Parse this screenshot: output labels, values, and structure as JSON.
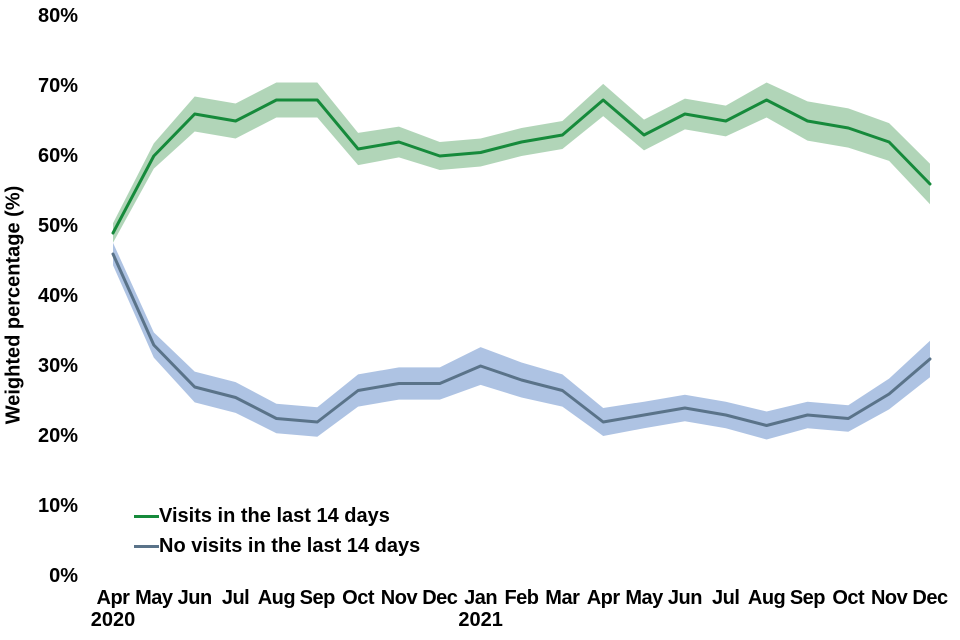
{
  "figure": {
    "background": "#ffffff",
    "text_color": "#000000"
  },
  "chart_data": {
    "type": "line",
    "title": "",
    "xlabel": "",
    "ylabel": "Weighted percentage (%)",
    "ylim": [
      0,
      80
    ],
    "grid": false,
    "legend_position": "inside-bottom-left",
    "ytick_labels": [
      "0%",
      "10%",
      "20%",
      "30%",
      "40%",
      "50%",
      "60%",
      "70%",
      "80%"
    ],
    "ytick_values": [
      0,
      10,
      20,
      30,
      40,
      50,
      60,
      70,
      80
    ],
    "categories": [
      "Apr",
      "May",
      "Jun",
      "Jul",
      "Aug",
      "Sep",
      "Oct",
      "Nov",
      "Dec",
      "Jan",
      "Feb",
      "Mar",
      "Apr",
      "May",
      "Jun",
      "Jul",
      "Aug",
      "Sep",
      "Oct",
      "Nov",
      "Dec"
    ],
    "year_labels": [
      {
        "label": "2020",
        "month_index": 0
      },
      {
        "label": "2021",
        "month_index": 9
      }
    ],
    "series": [
      {
        "name": "Visits in the last 14 days",
        "color": "#168a3b",
        "band_color": "#b1d5b8",
        "values": [
          49,
          60,
          66,
          65,
          68,
          68,
          61,
          62,
          60,
          60.5,
          62,
          63,
          68,
          63,
          66,
          65,
          68,
          65,
          64,
          62,
          56
        ],
        "band_half_width": [
          1.4,
          1.8,
          2.5,
          2.5,
          2.5,
          2.5,
          2.3,
          2.2,
          2.0,
          2.0,
          2.0,
          2.0,
          2.3,
          2.2,
          2.2,
          2.2,
          2.5,
          2.8,
          2.8,
          2.7,
          2.9
        ]
      },
      {
        "name": "No visits in the last 14 days",
        "color": "#5a7389",
        "band_color": "#aec3e3",
        "values": [
          46,
          33,
          27,
          25.5,
          22.5,
          22,
          26.5,
          27.5,
          27.5,
          30,
          28,
          26.5,
          22,
          23,
          24,
          23,
          21.5,
          23,
          22.5,
          26,
          31
        ],
        "band_half_width": [
          1.6,
          1.8,
          2.2,
          2.2,
          2.1,
          2.1,
          2.3,
          2.3,
          2.3,
          2.7,
          2.5,
          2.3,
          2.0,
          1.9,
          1.9,
          1.9,
          2.0,
          1.9,
          1.9,
          2.2,
          2.6
        ]
      }
    ]
  }
}
